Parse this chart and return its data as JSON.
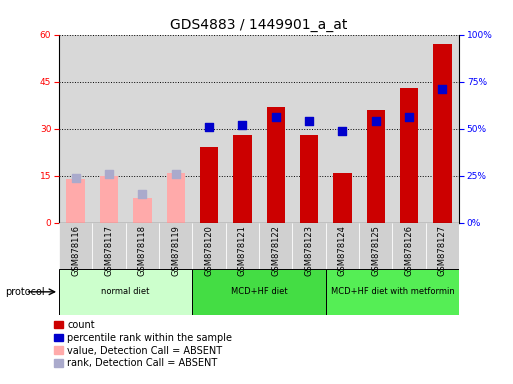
{
  "title": "GDS4883 / 1449901_a_at",
  "samples": [
    "GSM878116",
    "GSM878117",
    "GSM878118",
    "GSM878119",
    "GSM878120",
    "GSM878121",
    "GSM878122",
    "GSM878123",
    "GSM878124",
    "GSM878125",
    "GSM878126",
    "GSM878127"
  ],
  "count_values": [
    null,
    null,
    null,
    null,
    24,
    28,
    37,
    28,
    16,
    36,
    43,
    57
  ],
  "percentile_values": [
    null,
    null,
    null,
    null,
    51,
    52,
    56,
    54,
    49,
    54,
    56,
    71
  ],
  "absent_count": [
    14,
    15,
    8,
    16,
    null,
    null,
    null,
    null,
    null,
    null,
    null,
    null
  ],
  "absent_rank": [
    24,
    26,
    15,
    26,
    null,
    null,
    null,
    null,
    null,
    null,
    null,
    null
  ],
  "ylim_left": [
    0,
    60
  ],
  "ylim_right": [
    0,
    100
  ],
  "yticks_left": [
    0,
    15,
    30,
    45,
    60
  ],
  "yticks_right": [
    0,
    25,
    50,
    75,
    100
  ],
  "ytick_labels_right": [
    "0%",
    "25%",
    "50%",
    "75%",
    "100%"
  ],
  "bar_color_present": "#cc0000",
  "bar_color_absent": "#ffaaaa",
  "dot_color_present": "#0000cc",
  "dot_color_absent": "#aaaacc",
  "protocol_groups": [
    {
      "label": "normal diet",
      "start": 0,
      "end": 3,
      "color": "#ccffcc"
    },
    {
      "label": "MCD+HF diet",
      "start": 4,
      "end": 7,
      "color": "#44dd44"
    },
    {
      "label": "MCD+HF diet with metformin",
      "start": 8,
      "end": 11,
      "color": "#55ee55"
    }
  ],
  "legend_labels": [
    "count",
    "percentile rank within the sample",
    "value, Detection Call = ABSENT",
    "rank, Detection Call = ABSENT"
  ],
  "legend_colors": [
    "#cc0000",
    "#0000cc",
    "#ffaaaa",
    "#aaaacc"
  ],
  "bar_width": 0.55,
  "dot_size": 35,
  "title_fontsize": 10,
  "tick_fontsize": 6.5,
  "legend_fontsize": 7
}
